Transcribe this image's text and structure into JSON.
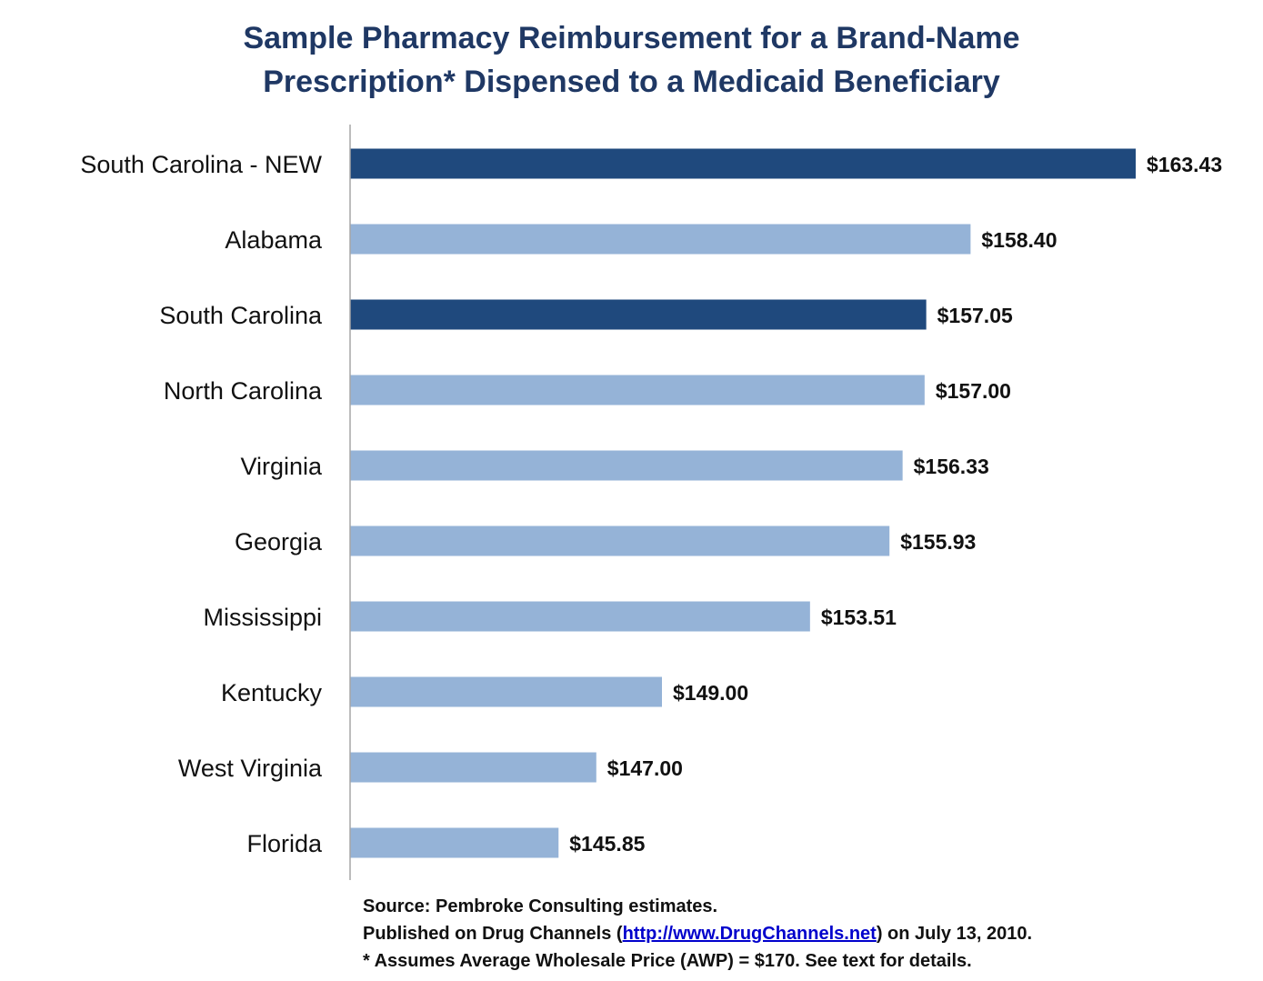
{
  "chart_data": {
    "type": "bar",
    "orientation": "horizontal",
    "title_line1": "Sample Pharmacy Reimbursement for a Brand-Name",
    "title_line2": "Prescription* Dispensed to a Medicaid Beneficiary",
    "categories": [
      "South Carolina - NEW",
      "Alabama",
      "South Carolina",
      "North Carolina",
      "Virginia",
      "Georgia",
      "Mississippi",
      "Kentucky",
      "West Virginia",
      "Florida"
    ],
    "values": [
      163.43,
      158.4,
      157.05,
      157.0,
      156.33,
      155.93,
      153.51,
      149.0,
      147.0,
      145.85
    ],
    "value_labels": [
      "$163.43",
      "$158.40",
      "$157.05",
      "$157.00",
      "$156.33",
      "$155.93",
      "$153.51",
      "$149.00",
      "$147.00",
      "$145.85"
    ],
    "highlighted": [
      true,
      false,
      true,
      false,
      false,
      false,
      false,
      false,
      false,
      false
    ],
    "xlim": [
      139.5,
      164
    ],
    "grid": false,
    "xaxis_visible": false,
    "legend": "none"
  },
  "colors": {
    "highlight_bar": "#1f497d",
    "default_bar": "#95b3d7",
    "title": "#1f3864",
    "axis_line": "#a6a6a6",
    "text": "#111111",
    "link": "#0000cc"
  },
  "notes": {
    "source": "Source: Pembroke Consulting estimates.",
    "published_prefix": "Published on Drug Channels (",
    "published_link": "http://www.DrugChannels.net",
    "published_suffix": ") on July 13, 2010.",
    "assumption": "* Assumes Average Wholesale Price (AWP) = $170. See text for details."
  }
}
